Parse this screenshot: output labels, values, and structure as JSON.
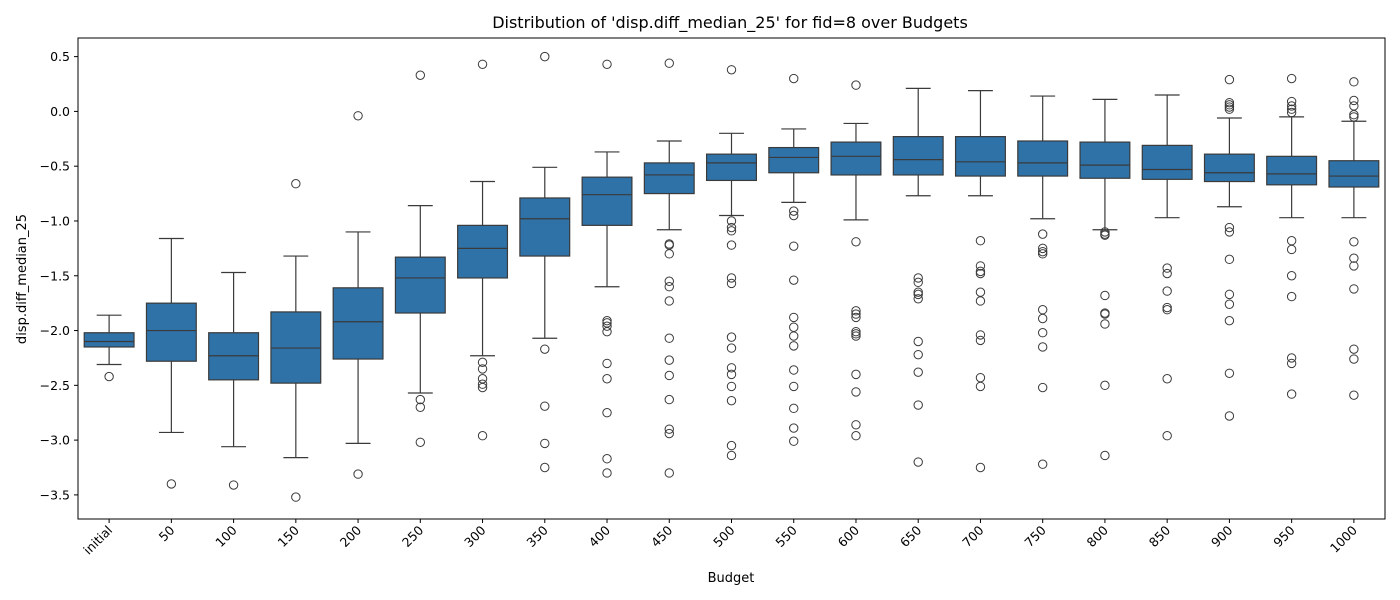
{
  "chart_data": {
    "type": "box",
    "title": "Distribution of 'disp.diff_median_25' for fid=8 over Budgets",
    "xlabel": "Budget",
    "ylabel": "disp.diff_median_25",
    "ylim": [
      -3.72,
      0.67
    ],
    "yticks": [
      0.5,
      0.0,
      -0.5,
      -1.0,
      -1.5,
      -2.0,
      -2.5,
      -3.0,
      -3.5
    ],
    "ytick_labels": [
      "0.5",
      "0.0",
      "−0.5",
      "−1.0",
      "−1.5",
      "−2.0",
      "−2.5",
      "−3.0",
      "−3.5"
    ],
    "categories": [
      "initial",
      "50",
      "100",
      "150",
      "200",
      "250",
      "300",
      "350",
      "400",
      "450",
      "500",
      "550",
      "600",
      "650",
      "700",
      "750",
      "800",
      "850",
      "900",
      "950",
      "1000"
    ],
    "grid": false,
    "box_color": "#2f72a8",
    "line_color": "#3a3a3a",
    "boxes": [
      {
        "q1": -2.15,
        "median": -2.1,
        "q3": -2.02,
        "whislo": -2.31,
        "whishi": -1.86,
        "fliers": [
          -2.42
        ]
      },
      {
        "q1": -2.28,
        "median": -2.0,
        "q3": -1.75,
        "whislo": -2.93,
        "whishi": -1.16,
        "fliers": [
          -3.4
        ]
      },
      {
        "q1": -2.45,
        "median": -2.23,
        "q3": -2.02,
        "whislo": -3.06,
        "whishi": -1.47,
        "fliers": [
          -3.41
        ]
      },
      {
        "q1": -2.48,
        "median": -2.16,
        "q3": -1.83,
        "whislo": -3.16,
        "whishi": -1.32,
        "fliers": [
          -0.66,
          -3.52
        ]
      },
      {
        "q1": -2.26,
        "median": -1.92,
        "q3": -1.61,
        "whislo": -3.03,
        "whishi": -1.1,
        "fliers": [
          -0.04,
          -3.31
        ]
      },
      {
        "q1": -1.84,
        "median": -1.52,
        "q3": -1.33,
        "whislo": -2.57,
        "whishi": -0.86,
        "fliers": [
          0.33,
          -2.63,
          -2.7,
          -3.02
        ]
      },
      {
        "q1": -1.52,
        "median": -1.25,
        "q3": -1.04,
        "whislo": -2.23,
        "whishi": -0.64,
        "fliers": [
          0.43,
          -2.29,
          -2.35,
          -2.44,
          -2.49,
          -2.52,
          -2.96
        ]
      },
      {
        "q1": -1.32,
        "median": -0.98,
        "q3": -0.79,
        "whislo": -2.07,
        "whishi": -0.51,
        "fliers": [
          0.5,
          -2.17,
          -2.69,
          -3.03,
          -3.25
        ]
      },
      {
        "q1": -1.04,
        "median": -0.76,
        "q3": -0.6,
        "whislo": -1.6,
        "whishi": -0.37,
        "fliers": [
          0.43,
          -1.91,
          -1.93,
          -1.96,
          -2.01,
          -2.3,
          -2.44,
          -2.75,
          -3.17,
          -3.3
        ]
      },
      {
        "q1": -0.75,
        "median": -0.58,
        "q3": -0.47,
        "whislo": -1.08,
        "whishi": -0.27,
        "fliers": [
          0.44,
          -1.21,
          -1.22,
          -1.3,
          -1.55,
          -1.6,
          -1.73,
          -2.07,
          -2.27,
          -2.41,
          -2.63,
          -2.9,
          -2.94,
          -3.3
        ]
      },
      {
        "q1": -0.63,
        "median": -0.47,
        "q3": -0.39,
        "whislo": -0.95,
        "whishi": -0.2,
        "fliers": [
          0.38,
          -1.0,
          -1.06,
          -1.09,
          -1.22,
          -1.52,
          -1.57,
          -2.06,
          -2.16,
          -2.34,
          -2.4,
          -2.51,
          -2.64,
          -3.05,
          -3.14
        ]
      },
      {
        "q1": -0.56,
        "median": -0.42,
        "q3": -0.33,
        "whislo": -0.83,
        "whishi": -0.16,
        "fliers": [
          0.3,
          -0.91,
          -0.95,
          -1.23,
          -1.54,
          -1.88,
          -1.97,
          -2.05,
          -2.14,
          -2.36,
          -2.51,
          -2.71,
          -2.89,
          -3.01
        ]
      },
      {
        "q1": -0.58,
        "median": -0.41,
        "q3": -0.28,
        "whislo": -0.99,
        "whishi": -0.11,
        "fliers": [
          0.24,
          -1.19,
          -1.82,
          -1.85,
          -1.88,
          -2.01,
          -2.03,
          -2.05,
          -2.4,
          -2.56,
          -2.86,
          -2.96
        ]
      },
      {
        "q1": -0.58,
        "median": -0.44,
        "q3": -0.23,
        "whislo": -0.77,
        "whishi": 0.21,
        "fliers": [
          -1.52,
          -1.56,
          -1.65,
          -1.67,
          -1.71,
          -2.1,
          -2.22,
          -2.38,
          -2.68,
          -3.2
        ]
      },
      {
        "q1": -0.59,
        "median": -0.46,
        "q3": -0.23,
        "whislo": -0.77,
        "whishi": 0.19,
        "fliers": [
          -1.18,
          -1.41,
          -1.46,
          -1.48,
          -1.65,
          -1.73,
          -2.04,
          -2.09,
          -2.43,
          -2.51,
          -3.25
        ]
      },
      {
        "q1": -0.59,
        "median": -0.47,
        "q3": -0.27,
        "whislo": -0.98,
        "whishi": 0.14,
        "fliers": [
          -1.12,
          -1.25,
          -1.28,
          -1.3,
          -1.81,
          -1.89,
          -2.02,
          -2.15,
          -2.52,
          -3.22
        ]
      },
      {
        "q1": -0.61,
        "median": -0.49,
        "q3": -0.28,
        "whislo": -1.08,
        "whishi": 0.11,
        "fliers": [
          -1.1,
          -1.12,
          -1.13,
          -1.68,
          -1.84,
          -1.85,
          -1.94,
          -2.5,
          -3.14
        ]
      },
      {
        "q1": -0.62,
        "median": -0.53,
        "q3": -0.31,
        "whislo": -0.97,
        "whishi": 0.15,
        "fliers": [
          -1.43,
          -1.48,
          -1.64,
          -1.79,
          -1.81,
          -2.44,
          -2.96
        ]
      },
      {
        "q1": -0.64,
        "median": -0.56,
        "q3": -0.39,
        "whislo": -0.87,
        "whishi": -0.06,
        "fliers": [
          0.29,
          0.08,
          0.06,
          0.04,
          0.02,
          -1.06,
          -1.1,
          -1.35,
          -1.67,
          -1.76,
          -1.91,
          -2.39,
          -2.78
        ]
      },
      {
        "q1": -0.67,
        "median": -0.57,
        "q3": -0.41,
        "whislo": -0.97,
        "whishi": -0.05,
        "fliers": [
          0.3,
          0.09,
          0.05,
          0.02,
          -0.01,
          -1.18,
          -1.26,
          -1.5,
          -1.69,
          -2.25,
          -2.3,
          -2.58
        ]
      },
      {
        "q1": -0.69,
        "median": -0.59,
        "q3": -0.45,
        "whislo": -0.97,
        "whishi": -0.09,
        "fliers": [
          0.27,
          0.1,
          0.05,
          -0.03,
          -0.05,
          -1.19,
          -1.34,
          -1.41,
          -1.62,
          -2.17,
          -2.26,
          -2.59
        ]
      }
    ]
  }
}
